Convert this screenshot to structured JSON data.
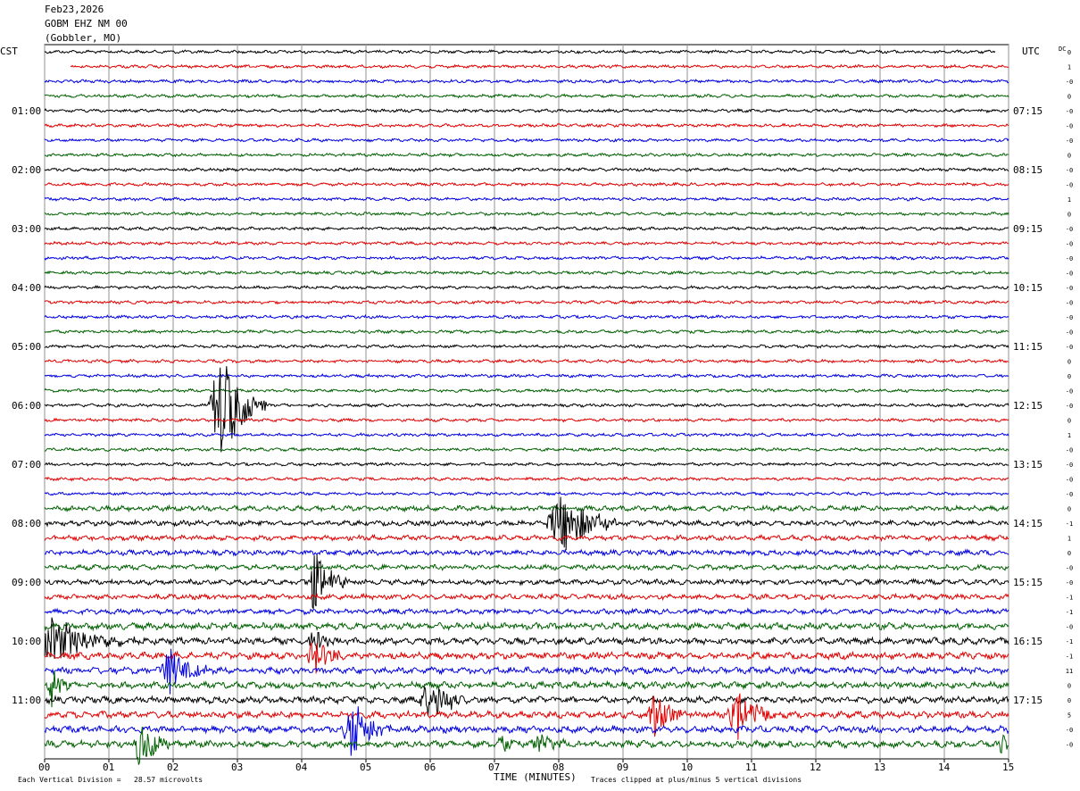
{
  "header": {
    "date": "Feb23,2026",
    "station": "GOBM EHZ NM 00",
    "location": "(Gobbler, MO)"
  },
  "left_timezone": "CST",
  "right_timezone": "UTC",
  "dc_label": "DC",
  "footer": {
    "scale_note": "Each Vertical Division =   28.57 microvolts",
    "x_axis_title": "TIME (MINUTES)",
    "clip_note": "Traces clipped at plus/minus 5 vertical divisions"
  },
  "colors": {
    "trace_cycle": [
      "#000000",
      "#e00000",
      "#0000e0",
      "#006000"
    ],
    "grid": "#909090"
  },
  "chart_data": {
    "type": "line",
    "title": "GOBM EHZ NM 00",
    "xlabel": "TIME (MINUTES)",
    "x_ticks": [
      "00",
      "01",
      "02",
      "03",
      "04",
      "05",
      "06",
      "07",
      "08",
      "09",
      "10",
      "11",
      "12",
      "13",
      "14",
      "15"
    ],
    "xlim": [
      0,
      15
    ],
    "minutes_per_trace": 15,
    "trace_count": 48,
    "vertical_division_microvolts": 28.57,
    "clip_divisions": 5,
    "left_time_labels": [
      "01:00",
      "02:00",
      "03:00",
      "04:00",
      "05:00",
      "06:00",
      "07:00",
      "08:00",
      "09:00",
      "10:00",
      "11:00"
    ],
    "right_time_labels": [
      "07:15",
      "08:15",
      "09:15",
      "10:15",
      "11:15",
      "12:15",
      "13:15",
      "14:15",
      "15:15",
      "16:15",
      "17:15"
    ],
    "dc_offsets": [
      "0",
      "1",
      "-0",
      "0",
      "-0",
      "-0",
      "-0",
      "0",
      "-0",
      "-0",
      "1",
      "0",
      "-0",
      "-0",
      "-0",
      "-0",
      "-0",
      "-0",
      "-0",
      "-0",
      "-0",
      "0",
      "0",
      "-0",
      "-0",
      "0",
      "1",
      "-0",
      "-0",
      "-0",
      "-0",
      "0",
      "-1",
      "1",
      "0",
      "-0",
      "-0",
      "-1",
      "-1",
      "-0",
      "-1",
      "-1",
      "11",
      "0",
      "0",
      "5",
      "-0",
      "-0"
    ],
    "events": [
      {
        "trace": 25,
        "minute": 2.75,
        "amplitude": 7,
        "duration": 0.7
      },
      {
        "trace": 33,
        "minute": 8.05,
        "amplitude": 4,
        "duration": 0.9
      },
      {
        "trace": 37,
        "minute": 4.2,
        "amplitude": 4,
        "duration": 0.5
      },
      {
        "trace": 41,
        "minute": 0.1,
        "amplitude": 3,
        "duration": 1.3
      },
      {
        "trace": 41,
        "minute": 4.2,
        "amplitude": 1.5,
        "duration": 0.4
      },
      {
        "trace": 42,
        "minute": 4.2,
        "amplitude": 2.5,
        "duration": 0.5
      },
      {
        "trace": 43,
        "minute": 1.95,
        "amplitude": 3,
        "duration": 0.6
      },
      {
        "trace": 44,
        "minute": 0.1,
        "amplitude": 3,
        "duration": 0.3
      },
      {
        "trace": 45,
        "minute": 6.0,
        "amplitude": 3,
        "duration": 0.6
      },
      {
        "trace": 46,
        "minute": 9.5,
        "amplitude": 3,
        "duration": 0.5
      },
      {
        "trace": 46,
        "minute": 10.8,
        "amplitude": 3,
        "duration": 0.7
      },
      {
        "trace": 47,
        "minute": 4.8,
        "amplitude": 4,
        "duration": 0.6
      },
      {
        "trace": 48,
        "minute": 1.5,
        "amplitude": 3,
        "duration": 0.5
      },
      {
        "trace": 48,
        "minute": 7.7,
        "amplitude": 1.5,
        "duration": 0.5
      },
      {
        "trace": 48,
        "minute": 7.1,
        "amplitude": 1.2,
        "duration": 0.4
      },
      {
        "trace": 48,
        "minute": 14.9,
        "amplitude": 2,
        "duration": 0.2
      }
    ]
  }
}
